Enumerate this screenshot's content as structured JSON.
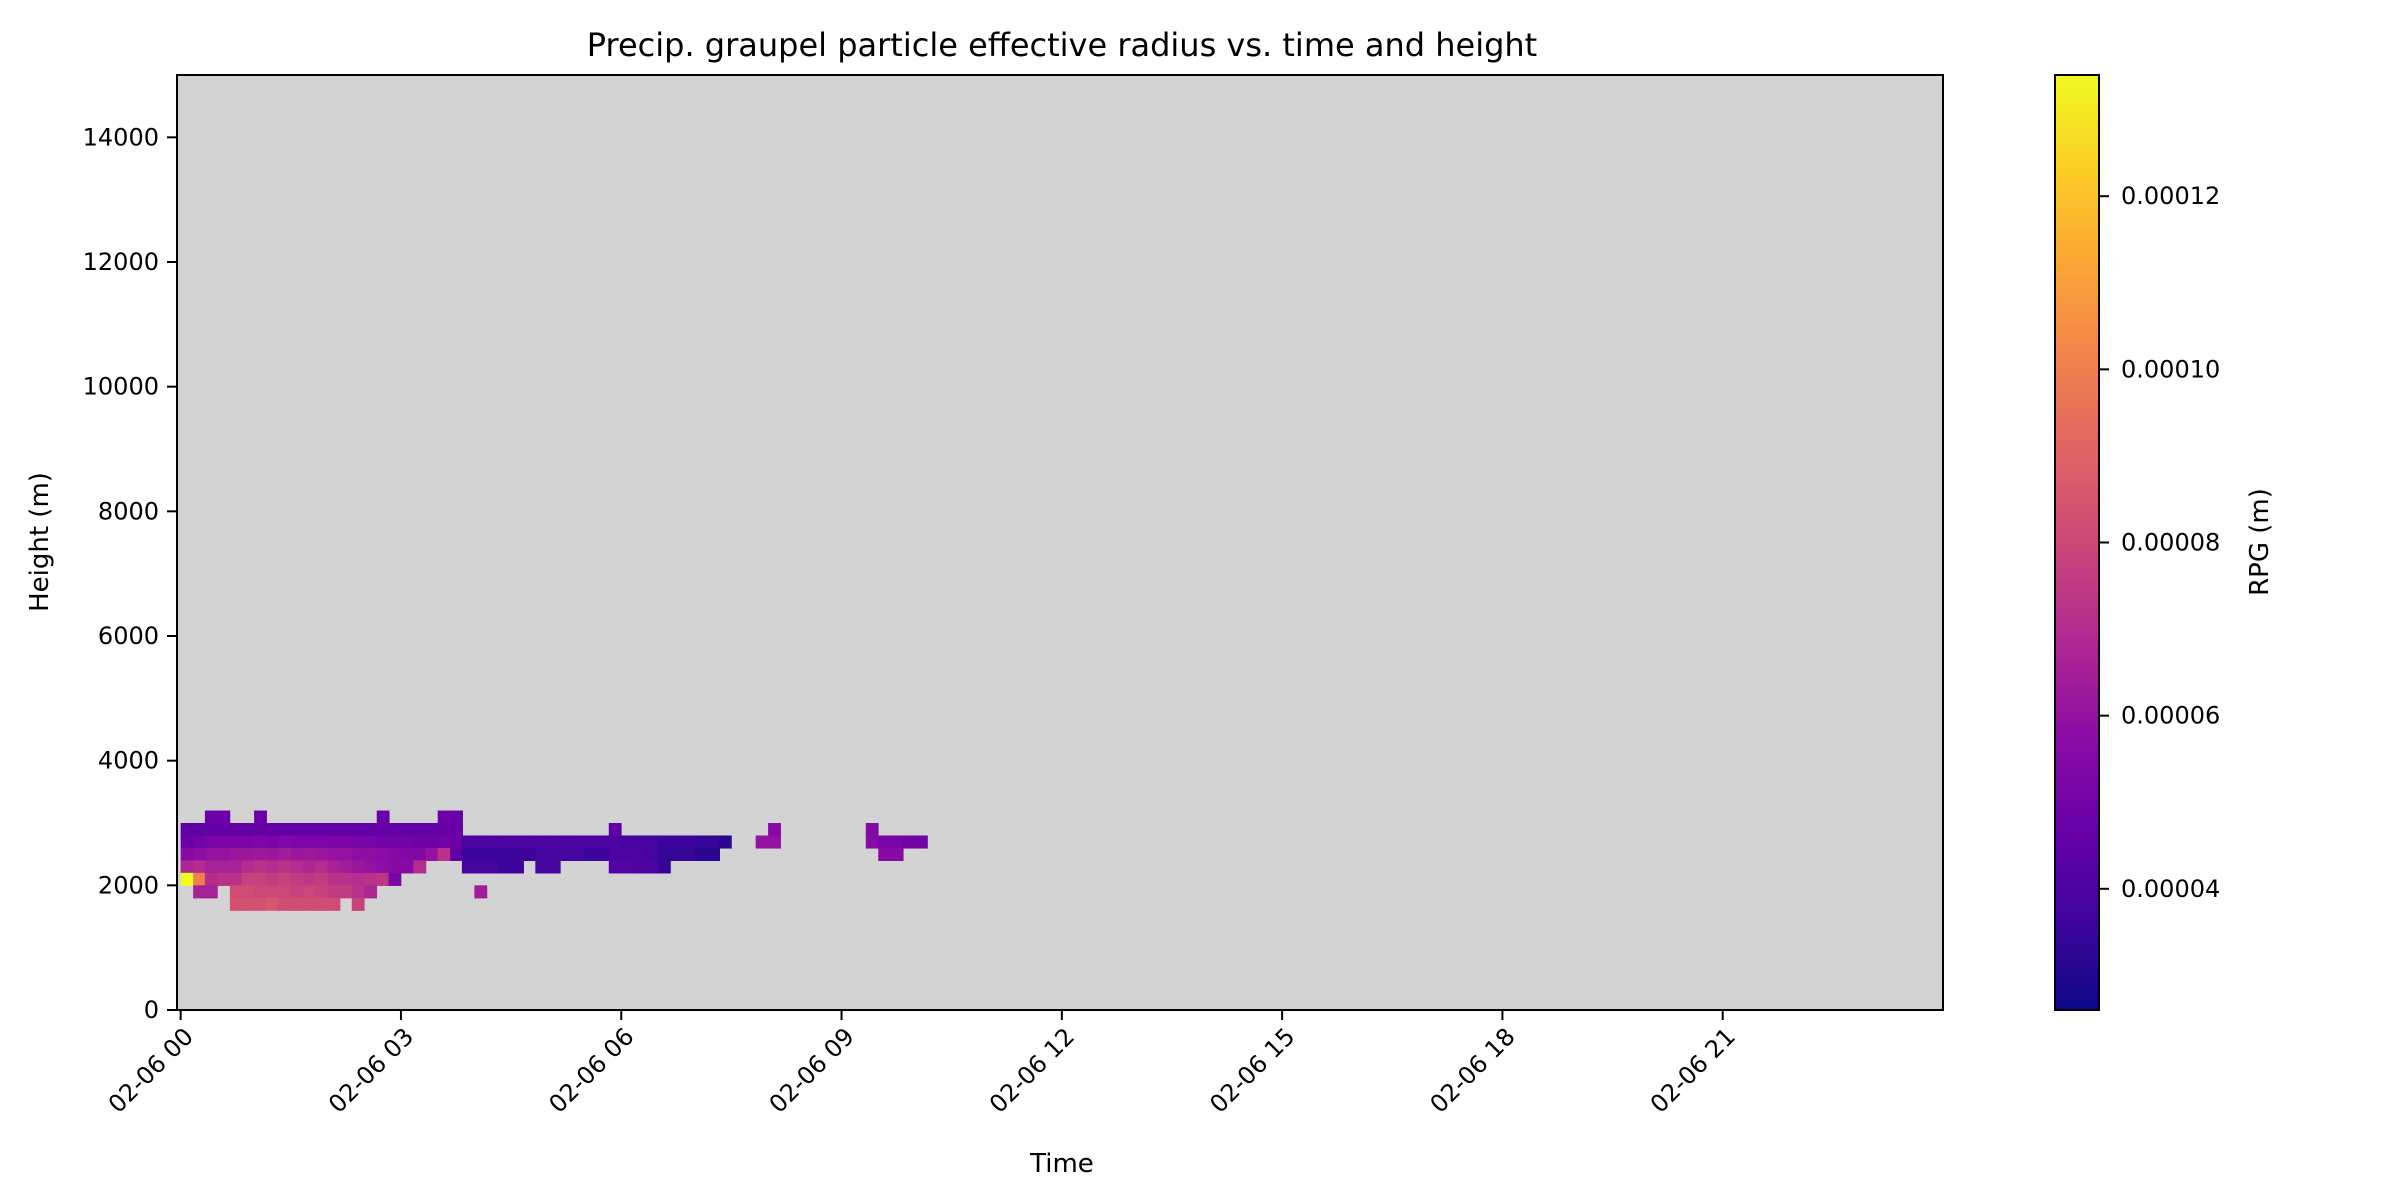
{
  "chart_data": {
    "type": "heatmap",
    "title": "Precip. graupel particle effective radius vs. time and height",
    "xlabel": "Time",
    "ylabel": "Height (m)",
    "x_tick_labels": [
      "02-06 00",
      "02-06 03",
      "02-06 06",
      "02-06 09",
      "02-06 12",
      "02-06 15",
      "02-06 18",
      "02-06 21"
    ],
    "x_tick_hours": [
      0,
      3,
      6,
      9,
      12,
      15,
      18,
      21
    ],
    "xlim_hours": [
      -0.05,
      24
    ],
    "y_ticks": [
      0,
      2000,
      4000,
      6000,
      8000,
      10000,
      12000,
      14000
    ],
    "ylim": [
      0,
      15000
    ],
    "colorbar": {
      "label": "RPG (m)",
      "colormap": "plasma",
      "vmin": 2.6e-05,
      "vmax": 0.000134,
      "ticks": [
        4e-05,
        6e-05,
        8e-05,
        0.0001,
        0.00012
      ],
      "tick_labels": [
        "0.00004",
        "0.00006",
        "0.00008",
        "0.00010",
        "0.00012"
      ]
    },
    "background_color": "#d3d3d3",
    "cell_width_hours": 0.1667,
    "cell_height_m": 200,
    "cells": [
      {
        "t": 0.33,
        "h": 3000,
        "v": 4.8e-05
      },
      {
        "t": 0.5,
        "h": 3000,
        "v": 4.8e-05
      },
      {
        "t": 1.0,
        "h": 3000,
        "v": 4.8e-05
      },
      {
        "t": 2.67,
        "h": 3000,
        "v": 4.8e-05
      },
      {
        "t": 3.5,
        "h": 3000,
        "v": 4.8e-05
      },
      {
        "t": 3.67,
        "h": 3000,
        "v": 4.8e-05
      },
      {
        "t": 0.0,
        "h": 2800,
        "v": 4.5e-05
      },
      {
        "t": 0.17,
        "h": 2800,
        "v": 4.5e-05
      },
      {
        "t": 0.33,
        "h": 2800,
        "v": 4.6e-05
      },
      {
        "t": 0.5,
        "h": 2800,
        "v": 4.6e-05
      },
      {
        "t": 0.67,
        "h": 2800,
        "v": 4.6e-05
      },
      {
        "t": 0.83,
        "h": 2800,
        "v": 4.6e-05
      },
      {
        "t": 1.0,
        "h": 2800,
        "v": 4.7e-05
      },
      {
        "t": 1.17,
        "h": 2800,
        "v": 4.6e-05
      },
      {
        "t": 1.33,
        "h": 2800,
        "v": 4.6e-05
      },
      {
        "t": 1.5,
        "h": 2800,
        "v": 4.6e-05
      },
      {
        "t": 1.67,
        "h": 2800,
        "v": 4.6e-05
      },
      {
        "t": 1.83,
        "h": 2800,
        "v": 4.6e-05
      },
      {
        "t": 2.0,
        "h": 2800,
        "v": 4.6e-05
      },
      {
        "t": 2.17,
        "h": 2800,
        "v": 4.6e-05
      },
      {
        "t": 2.33,
        "h": 2800,
        "v": 4.6e-05
      },
      {
        "t": 2.5,
        "h": 2800,
        "v": 4.6e-05
      },
      {
        "t": 2.67,
        "h": 2800,
        "v": 4.7e-05
      },
      {
        "t": 2.83,
        "h": 2800,
        "v": 4.6e-05
      },
      {
        "t": 3.0,
        "h": 2800,
        "v": 4.6e-05
      },
      {
        "t": 3.17,
        "h": 2800,
        "v": 4.6e-05
      },
      {
        "t": 3.33,
        "h": 2800,
        "v": 4.6e-05
      },
      {
        "t": 3.5,
        "h": 2800,
        "v": 4.7e-05
      },
      {
        "t": 3.67,
        "h": 2800,
        "v": 4.7e-05
      },
      {
        "t": 5.83,
        "h": 2800,
        "v": 4.5e-05
      },
      {
        "t": 8.0,
        "h": 2800,
        "v": 5.6e-05
      },
      {
        "t": 9.33,
        "h": 2800,
        "v": 5.5e-05
      },
      {
        "t": 0.0,
        "h": 2600,
        "v": 4.8e-05
      },
      {
        "t": 0.17,
        "h": 2600,
        "v": 5e-05
      },
      {
        "t": 0.33,
        "h": 2600,
        "v": 5.2e-05
      },
      {
        "t": 0.5,
        "h": 2600,
        "v": 5.2e-05
      },
      {
        "t": 0.67,
        "h": 2600,
        "v": 5.2e-05
      },
      {
        "t": 0.83,
        "h": 2600,
        "v": 5.2e-05
      },
      {
        "t": 1.0,
        "h": 2600,
        "v": 5.3e-05
      },
      {
        "t": 1.17,
        "h": 2600,
        "v": 5.2e-05
      },
      {
        "t": 1.33,
        "h": 2600,
        "v": 5.4e-05
      },
      {
        "t": 1.5,
        "h": 2600,
        "v": 5.3e-05
      },
      {
        "t": 1.67,
        "h": 2600,
        "v": 5.3e-05
      },
      {
        "t": 1.83,
        "h": 2600,
        "v": 5.3e-05
      },
      {
        "t": 2.0,
        "h": 2600,
        "v": 5.2e-05
      },
      {
        "t": 2.17,
        "h": 2600,
        "v": 5.2e-05
      },
      {
        "t": 2.33,
        "h": 2600,
        "v": 5.1e-05
      },
      {
        "t": 2.5,
        "h": 2600,
        "v": 5.1e-05
      },
      {
        "t": 2.67,
        "h": 2600,
        "v": 5e-05
      },
      {
        "t": 2.83,
        "h": 2600,
        "v": 5e-05
      },
      {
        "t": 3.0,
        "h": 2600,
        "v": 5e-05
      },
      {
        "t": 3.17,
        "h": 2600,
        "v": 4.9e-05
      },
      {
        "t": 3.33,
        "h": 2600,
        "v": 4.9e-05
      },
      {
        "t": 3.5,
        "h": 2600,
        "v": 5e-05
      },
      {
        "t": 3.67,
        "h": 2600,
        "v": 4.8e-05
      },
      {
        "t": 3.83,
        "h": 2600,
        "v": 4e-05
      },
      {
        "t": 4.0,
        "h": 2600,
        "v": 4e-05
      },
      {
        "t": 4.17,
        "h": 2600,
        "v": 4e-05
      },
      {
        "t": 4.33,
        "h": 2600,
        "v": 4e-05
      },
      {
        "t": 4.5,
        "h": 2600,
        "v": 4e-05
      },
      {
        "t": 4.67,
        "h": 2600,
        "v": 4e-05
      },
      {
        "t": 4.83,
        "h": 2600,
        "v": 4e-05
      },
      {
        "t": 5.0,
        "h": 2600,
        "v": 4e-05
      },
      {
        "t": 5.17,
        "h": 2600,
        "v": 4e-05
      },
      {
        "t": 5.33,
        "h": 2600,
        "v": 4e-05
      },
      {
        "t": 5.5,
        "h": 2600,
        "v": 4e-05
      },
      {
        "t": 5.67,
        "h": 2600,
        "v": 4e-05
      },
      {
        "t": 5.83,
        "h": 2600,
        "v": 4e-05
      },
      {
        "t": 6.0,
        "h": 2600,
        "v": 3.8e-05
      },
      {
        "t": 6.17,
        "h": 2600,
        "v": 3.8e-05
      },
      {
        "t": 6.33,
        "h": 2600,
        "v": 3.8e-05
      },
      {
        "t": 6.5,
        "h": 2600,
        "v": 3.6e-05
      },
      {
        "t": 6.67,
        "h": 2600,
        "v": 3.6e-05
      },
      {
        "t": 6.83,
        "h": 2600,
        "v": 3.6e-05
      },
      {
        "t": 7.0,
        "h": 2600,
        "v": 3.4e-05
      },
      {
        "t": 7.17,
        "h": 2600,
        "v": 3.4e-05
      },
      {
        "t": 7.33,
        "h": 2600,
        "v": 3.2e-05
      },
      {
        "t": 7.83,
        "h": 2600,
        "v": 6e-05
      },
      {
        "t": 8.0,
        "h": 2600,
        "v": 6e-05
      },
      {
        "t": 9.33,
        "h": 2600,
        "v": 5.6e-05
      },
      {
        "t": 9.5,
        "h": 2600,
        "v": 5.2e-05
      },
      {
        "t": 9.67,
        "h": 2600,
        "v": 5.2e-05
      },
      {
        "t": 9.83,
        "h": 2600,
        "v": 5e-05
      },
      {
        "t": 10.0,
        "h": 2600,
        "v": 5e-05
      },
      {
        "t": 0.0,
        "h": 2400,
        "v": 5.6e-05
      },
      {
        "t": 0.17,
        "h": 2400,
        "v": 5.8e-05
      },
      {
        "t": 0.33,
        "h": 2400,
        "v": 6e-05
      },
      {
        "t": 0.5,
        "h": 2400,
        "v": 6e-05
      },
      {
        "t": 0.67,
        "h": 2400,
        "v": 6.2e-05
      },
      {
        "t": 0.83,
        "h": 2400,
        "v": 6.2e-05
      },
      {
        "t": 1.0,
        "h": 2400,
        "v": 6.3e-05
      },
      {
        "t": 1.17,
        "h": 2400,
        "v": 6.2e-05
      },
      {
        "t": 1.33,
        "h": 2400,
        "v": 6.4e-05
      },
      {
        "t": 1.5,
        "h": 2400,
        "v": 6.2e-05
      },
      {
        "t": 1.67,
        "h": 2400,
        "v": 6.3e-05
      },
      {
        "t": 1.83,
        "h": 2400,
        "v": 6.2e-05
      },
      {
        "t": 2.0,
        "h": 2400,
        "v": 6e-05
      },
      {
        "t": 2.17,
        "h": 2400,
        "v": 6e-05
      },
      {
        "t": 2.33,
        "h": 2400,
        "v": 5.8e-05
      },
      {
        "t": 2.5,
        "h": 2400,
        "v": 5.8e-05
      },
      {
        "t": 2.67,
        "h": 2400,
        "v": 5.7e-05
      },
      {
        "t": 2.83,
        "h": 2400,
        "v": 5.6e-05
      },
      {
        "t": 3.0,
        "h": 2400,
        "v": 5.5e-05
      },
      {
        "t": 3.17,
        "h": 2400,
        "v": 5.5e-05
      },
      {
        "t": 3.33,
        "h": 2400,
        "v": 6e-05
      },
      {
        "t": 3.5,
        "h": 2400,
        "v": 7.2e-05
      },
      {
        "t": 3.67,
        "h": 2400,
        "v": 4.5e-05
      },
      {
        "t": 3.83,
        "h": 2400,
        "v": 3.6e-05
      },
      {
        "t": 4.0,
        "h": 2400,
        "v": 3.6e-05
      },
      {
        "t": 4.17,
        "h": 2400,
        "v": 3.6e-05
      },
      {
        "t": 4.33,
        "h": 2400,
        "v": 3.6e-05
      },
      {
        "t": 4.5,
        "h": 2400,
        "v": 3.6e-05
      },
      {
        "t": 4.67,
        "h": 2400,
        "v": 3.6e-05
      },
      {
        "t": 4.83,
        "h": 2400,
        "v": 3.8e-05
      },
      {
        "t": 5.0,
        "h": 2400,
        "v": 3.8e-05
      },
      {
        "t": 5.17,
        "h": 2400,
        "v": 3.8e-05
      },
      {
        "t": 5.33,
        "h": 2400,
        "v": 3.8e-05
      },
      {
        "t": 5.5,
        "h": 2400,
        "v": 3.6e-05
      },
      {
        "t": 5.67,
        "h": 2400,
        "v": 3.6e-05
      },
      {
        "t": 5.83,
        "h": 2400,
        "v": 4e-05
      },
      {
        "t": 6.0,
        "h": 2400,
        "v": 4e-05
      },
      {
        "t": 6.17,
        "h": 2400,
        "v": 4e-05
      },
      {
        "t": 6.33,
        "h": 2400,
        "v": 3.8e-05
      },
      {
        "t": 6.5,
        "h": 2400,
        "v": 3.4e-05
      },
      {
        "t": 6.67,
        "h": 2400,
        "v": 3.4e-05
      },
      {
        "t": 6.83,
        "h": 2400,
        "v": 3.4e-05
      },
      {
        "t": 7.0,
        "h": 2400,
        "v": 3.2e-05
      },
      {
        "t": 7.17,
        "h": 2400,
        "v": 3.2e-05
      },
      {
        "t": 9.5,
        "h": 2400,
        "v": 5.6e-05
      },
      {
        "t": 9.67,
        "h": 2400,
        "v": 5.6e-05
      },
      {
        "t": 0.0,
        "h": 2200,
        "v": 6.8e-05
      },
      {
        "t": 0.17,
        "h": 2200,
        "v": 7e-05
      },
      {
        "t": 0.33,
        "h": 2200,
        "v": 6.6e-05
      },
      {
        "t": 0.5,
        "h": 2200,
        "v": 6.6e-05
      },
      {
        "t": 0.67,
        "h": 2200,
        "v": 6.6e-05
      },
      {
        "t": 0.83,
        "h": 2200,
        "v": 7e-05
      },
      {
        "t": 1.0,
        "h": 2200,
        "v": 7.2e-05
      },
      {
        "t": 1.17,
        "h": 2200,
        "v": 7e-05
      },
      {
        "t": 1.33,
        "h": 2200,
        "v": 7.2e-05
      },
      {
        "t": 1.5,
        "h": 2200,
        "v": 7e-05
      },
      {
        "t": 1.67,
        "h": 2200,
        "v": 6.8e-05
      },
      {
        "t": 1.83,
        "h": 2200,
        "v": 7e-05
      },
      {
        "t": 2.0,
        "h": 2200,
        "v": 6.6e-05
      },
      {
        "t": 2.17,
        "h": 2200,
        "v": 6.4e-05
      },
      {
        "t": 2.33,
        "h": 2200,
        "v": 6.2e-05
      },
      {
        "t": 2.5,
        "h": 2200,
        "v": 6e-05
      },
      {
        "t": 2.67,
        "h": 2200,
        "v": 5.8e-05
      },
      {
        "t": 2.83,
        "h": 2200,
        "v": 5.6e-05
      },
      {
        "t": 3.0,
        "h": 2200,
        "v": 5.6e-05
      },
      {
        "t": 3.17,
        "h": 2200,
        "v": 7e-05
      },
      {
        "t": 3.83,
        "h": 2200,
        "v": 3.8e-05
      },
      {
        "t": 4.0,
        "h": 2200,
        "v": 3.8e-05
      },
      {
        "t": 4.17,
        "h": 2200,
        "v": 3.8e-05
      },
      {
        "t": 4.33,
        "h": 2200,
        "v": 3.6e-05
      },
      {
        "t": 4.5,
        "h": 2200,
        "v": 3.6e-05
      },
      {
        "t": 4.83,
        "h": 2200,
        "v": 3.8e-05
      },
      {
        "t": 5.0,
        "h": 2200,
        "v": 3.8e-05
      },
      {
        "t": 5.83,
        "h": 2200,
        "v": 4.2e-05
      },
      {
        "t": 6.0,
        "h": 2200,
        "v": 4.2e-05
      },
      {
        "t": 6.17,
        "h": 2200,
        "v": 4e-05
      },
      {
        "t": 6.33,
        "h": 2200,
        "v": 4e-05
      },
      {
        "t": 6.5,
        "h": 2200,
        "v": 3.4e-05
      },
      {
        "t": 0.0,
        "h": 2000,
        "v": 0.000134
      },
      {
        "t": 0.17,
        "h": 2000,
        "v": 0.0001
      },
      {
        "t": 0.33,
        "h": 2000,
        "v": 7e-05
      },
      {
        "t": 0.5,
        "h": 2000,
        "v": 7.2e-05
      },
      {
        "t": 0.67,
        "h": 2000,
        "v": 7.2e-05
      },
      {
        "t": 0.83,
        "h": 2000,
        "v": 7.8e-05
      },
      {
        "t": 1.0,
        "h": 2000,
        "v": 7.8e-05
      },
      {
        "t": 1.17,
        "h": 2000,
        "v": 7.6e-05
      },
      {
        "t": 1.33,
        "h": 2000,
        "v": 7.8e-05
      },
      {
        "t": 1.5,
        "h": 2000,
        "v": 7.6e-05
      },
      {
        "t": 1.67,
        "h": 2000,
        "v": 7.4e-05
      },
      {
        "t": 1.83,
        "h": 2000,
        "v": 7.6e-05
      },
      {
        "t": 2.0,
        "h": 2000,
        "v": 7.2e-05
      },
      {
        "t": 2.17,
        "h": 2000,
        "v": 7.2e-05
      },
      {
        "t": 2.33,
        "h": 2000,
        "v": 7e-05
      },
      {
        "t": 2.5,
        "h": 2000,
        "v": 7.2e-05
      },
      {
        "t": 2.67,
        "h": 2000,
        "v": 7.4e-05
      },
      {
        "t": 2.83,
        "h": 2000,
        "v": 5.2e-05
      },
      {
        "t": 0.17,
        "h": 1800,
        "v": 6.6e-05
      },
      {
        "t": 0.33,
        "h": 1800,
        "v": 6.6e-05
      },
      {
        "t": 0.67,
        "h": 1800,
        "v": 8.2e-05
      },
      {
        "t": 0.83,
        "h": 1800,
        "v": 8.2e-05
      },
      {
        "t": 1.0,
        "h": 1800,
        "v": 8e-05
      },
      {
        "t": 1.17,
        "h": 1800,
        "v": 8e-05
      },
      {
        "t": 1.33,
        "h": 1800,
        "v": 8e-05
      },
      {
        "t": 1.5,
        "h": 1800,
        "v": 7.8e-05
      },
      {
        "t": 1.67,
        "h": 1800,
        "v": 8e-05
      },
      {
        "t": 1.83,
        "h": 1800,
        "v": 7.8e-05
      },
      {
        "t": 2.0,
        "h": 1800,
        "v": 7.6e-05
      },
      {
        "t": 2.17,
        "h": 1800,
        "v": 7.6e-05
      },
      {
        "t": 2.33,
        "h": 1800,
        "v": 7.2e-05
      },
      {
        "t": 2.5,
        "h": 1800,
        "v": 6.8e-05
      },
      {
        "t": 4.0,
        "h": 1800,
        "v": 6.4e-05
      },
      {
        "t": 0.67,
        "h": 1600,
        "v": 8.4e-05
      },
      {
        "t": 0.83,
        "h": 1600,
        "v": 8.4e-05
      },
      {
        "t": 1.0,
        "h": 1600,
        "v": 8.4e-05
      },
      {
        "t": 1.17,
        "h": 1600,
        "v": 8.6e-05
      },
      {
        "t": 1.33,
        "h": 1600,
        "v": 8.2e-05
      },
      {
        "t": 1.5,
        "h": 1600,
        "v": 8.2e-05
      },
      {
        "t": 1.67,
        "h": 1600,
        "v": 8.2e-05
      },
      {
        "t": 1.83,
        "h": 1600,
        "v": 8.2e-05
      },
      {
        "t": 2.0,
        "h": 1600,
        "v": 8.2e-05
      },
      {
        "t": 2.33,
        "h": 1600,
        "v": 7.8e-05
      }
    ]
  }
}
